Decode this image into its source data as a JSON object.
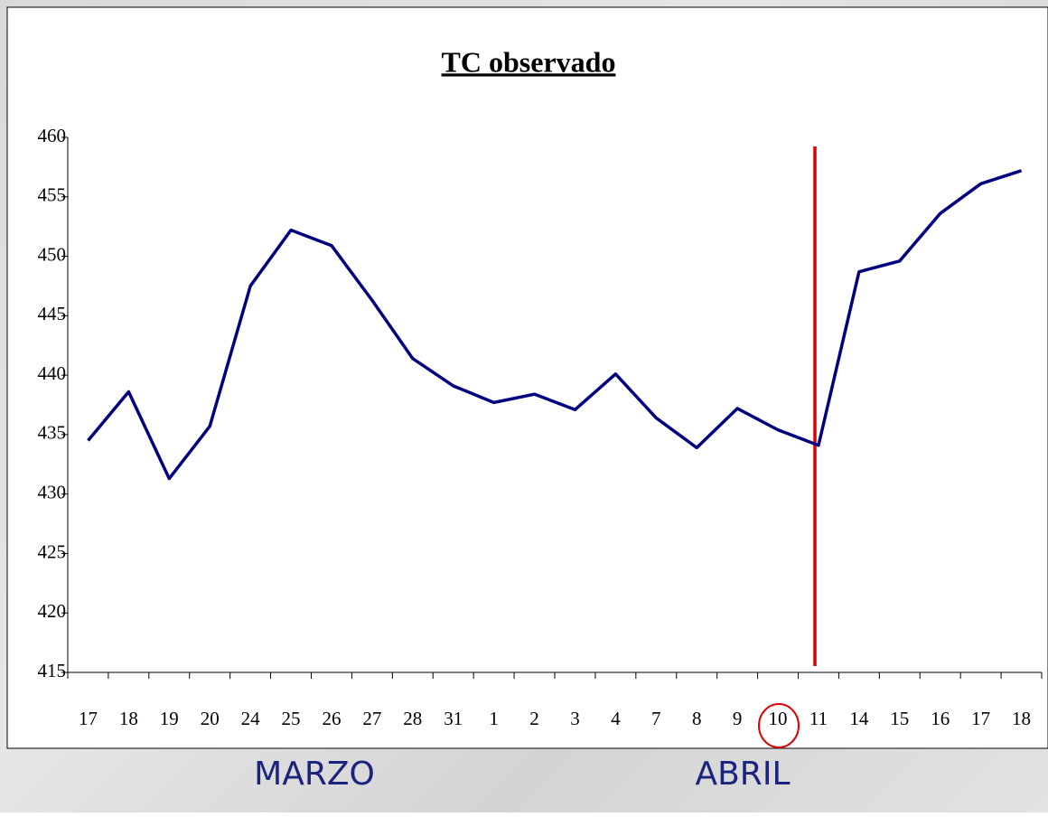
{
  "chart_data": {
    "type": "line",
    "title": "TC observado",
    "categories": [
      "17",
      "18",
      "19",
      "20",
      "24",
      "25",
      "26",
      "27",
      "28",
      "31",
      "1",
      "2",
      "3",
      "4",
      "7",
      "8",
      "9",
      "10",
      "11",
      "14",
      "15",
      "16",
      "17",
      "18"
    ],
    "series": [
      {
        "name": "TC observado",
        "color": "#000080",
        "values": [
          434.5,
          438.6,
          431.3,
          435.7,
          447.5,
          452.2,
          450.9,
          446.3,
          441.4,
          439.1,
          437.7,
          438.4,
          437.1,
          440.1,
          436.4,
          433.9,
          437.2,
          435.4,
          434.1,
          448.7,
          449.6,
          453.6,
          456.1,
          457.2
        ]
      }
    ],
    "ylim": [
      415,
      460
    ],
    "yticks": [
      415,
      420,
      425,
      430,
      435,
      440,
      445,
      450,
      455,
      460
    ],
    "grid": false,
    "annotations": [
      "MARZO",
      "ABRIL"
    ]
  }
}
